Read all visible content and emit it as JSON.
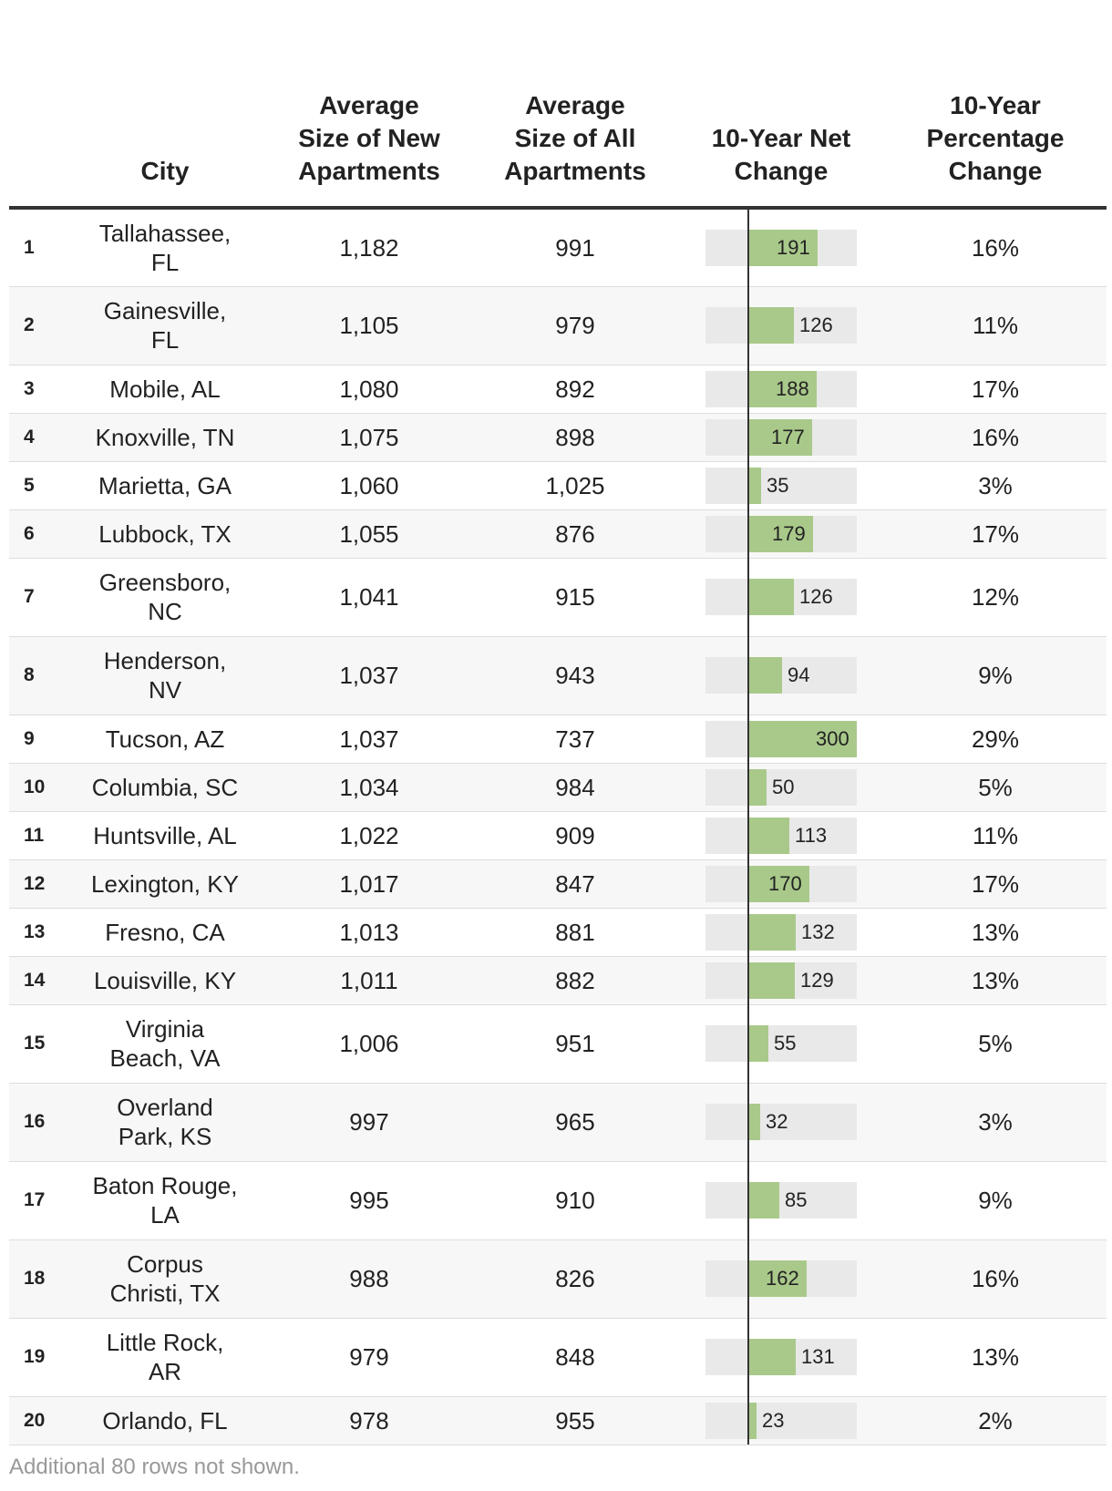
{
  "columns": {
    "rank": "",
    "city": "City",
    "new_size": "Average Size of New Apartments",
    "all_size": "Average Size of All Apartments",
    "net_change": "10-Year Net Change",
    "pct_change": "10-Year Percentage Change"
  },
  "rows": [
    {
      "rank": "1",
      "city": "Tallahassee, FL",
      "new_size": "1,182",
      "all_size": "991",
      "net_change": "191",
      "pct_change": "16%"
    },
    {
      "rank": "2",
      "city": "Gainesville, FL",
      "new_size": "1,105",
      "all_size": "979",
      "net_change": "126",
      "pct_change": "11%"
    },
    {
      "rank": "3",
      "city": "Mobile, AL",
      "new_size": "1,080",
      "all_size": "892",
      "net_change": "188",
      "pct_change": "17%"
    },
    {
      "rank": "4",
      "city": "Knoxville, TN",
      "new_size": "1,075",
      "all_size": "898",
      "net_change": "177",
      "pct_change": "16%"
    },
    {
      "rank": "5",
      "city": "Marietta, GA",
      "new_size": "1,060",
      "all_size": "1,025",
      "net_change": "35",
      "pct_change": "3%"
    },
    {
      "rank": "6",
      "city": "Lubbock, TX",
      "new_size": "1,055",
      "all_size": "876",
      "net_change": "179",
      "pct_change": "17%"
    },
    {
      "rank": "7",
      "city": "Greensboro, NC",
      "new_size": "1,041",
      "all_size": "915",
      "net_change": "126",
      "pct_change": "12%"
    },
    {
      "rank": "8",
      "city": "Henderson, NV",
      "new_size": "1,037",
      "all_size": "943",
      "net_change": "94",
      "pct_change": "9%"
    },
    {
      "rank": "9",
      "city": "Tucson, AZ",
      "new_size": "1,037",
      "all_size": "737",
      "net_change": "300",
      "pct_change": "29%"
    },
    {
      "rank": "10",
      "city": "Columbia, SC",
      "new_size": "1,034",
      "all_size": "984",
      "net_change": "50",
      "pct_change": "5%"
    },
    {
      "rank": "11",
      "city": "Huntsville, AL",
      "new_size": "1,022",
      "all_size": "909",
      "net_change": "113",
      "pct_change": "11%"
    },
    {
      "rank": "12",
      "city": "Lexington, KY",
      "new_size": "1,017",
      "all_size": "847",
      "net_change": "170",
      "pct_change": "17%"
    },
    {
      "rank": "13",
      "city": "Fresno, CA",
      "new_size": "1,013",
      "all_size": "881",
      "net_change": "132",
      "pct_change": "13%"
    },
    {
      "rank": "14",
      "city": "Louisville, KY",
      "new_size": "1,011",
      "all_size": "882",
      "net_change": "129",
      "pct_change": "13%"
    },
    {
      "rank": "15",
      "city": "Virginia Beach, VA",
      "new_size": "1,006",
      "all_size": "951",
      "net_change": "55",
      "pct_change": "5%"
    },
    {
      "rank": "16",
      "city": "Overland Park, KS",
      "new_size": "997",
      "all_size": "965",
      "net_change": "32",
      "pct_change": "3%"
    },
    {
      "rank": "17",
      "city": "Baton Rouge, LA",
      "new_size": "995",
      "all_size": "910",
      "net_change": "85",
      "pct_change": "9%"
    },
    {
      "rank": "18",
      "city": "Corpus Christi, TX",
      "new_size": "988",
      "all_size": "826",
      "net_change": "162",
      "pct_change": "16%"
    },
    {
      "rank": "19",
      "city": "Little Rock, AR",
      "new_size": "979",
      "all_size": "848",
      "net_change": "131",
      "pct_change": "13%"
    },
    {
      "rank": "20",
      "city": "Orlando, FL",
      "new_size": "978",
      "all_size": "955",
      "net_change": "23",
      "pct_change": "2%"
    }
  ],
  "footnote": "Additional 80 rows not shown.",
  "colors": {
    "bar_fill": "#a9c98a",
    "bar_track": "#e9e9e9",
    "axis": "#333333",
    "stripe": "#f7f7f7"
  },
  "chart_data": {
    "type": "table",
    "title": "",
    "columns": [
      "",
      "City",
      "Average Size of New Apartments",
      "Average Size of All Apartments",
      "10-Year Net Change",
      "10-Year Percentage Change"
    ],
    "bar_column": "10-Year Net Change",
    "bar_range": [
      -100,
      300
    ],
    "categories": [
      "Tallahassee, FL",
      "Gainesville, FL",
      "Mobile, AL",
      "Knoxville, TN",
      "Marietta, GA",
      "Lubbock, TX",
      "Greensboro, NC",
      "Henderson, NV",
      "Tucson, AZ",
      "Columbia, SC",
      "Huntsville, AL",
      "Lexington, KY",
      "Fresno, CA",
      "Louisville, KY",
      "Virginia Beach, VA",
      "Overland Park, KS",
      "Baton Rouge, LA",
      "Corpus Christi, TX",
      "Little Rock, AR",
      "Orlando, FL"
    ],
    "series": [
      {
        "name": "Average Size of New Apartments",
        "values": [
          1182,
          1105,
          1080,
          1075,
          1060,
          1055,
          1041,
          1037,
          1037,
          1034,
          1022,
          1017,
          1013,
          1011,
          1006,
          997,
          995,
          988,
          979,
          978
        ]
      },
      {
        "name": "Average Size of All Apartments",
        "values": [
          991,
          979,
          892,
          898,
          1025,
          876,
          915,
          943,
          737,
          984,
          909,
          847,
          881,
          882,
          951,
          965,
          910,
          826,
          848,
          955
        ]
      },
      {
        "name": "10-Year Net Change",
        "values": [
          191,
          126,
          188,
          177,
          35,
          179,
          126,
          94,
          300,
          50,
          113,
          170,
          132,
          129,
          55,
          32,
          85,
          162,
          131,
          23
        ]
      },
      {
        "name": "10-Year Percentage Change",
        "values": [
          16,
          11,
          17,
          16,
          3,
          17,
          12,
          9,
          29,
          5,
          11,
          17,
          13,
          13,
          5,
          3,
          9,
          16,
          13,
          2
        ]
      }
    ]
  }
}
